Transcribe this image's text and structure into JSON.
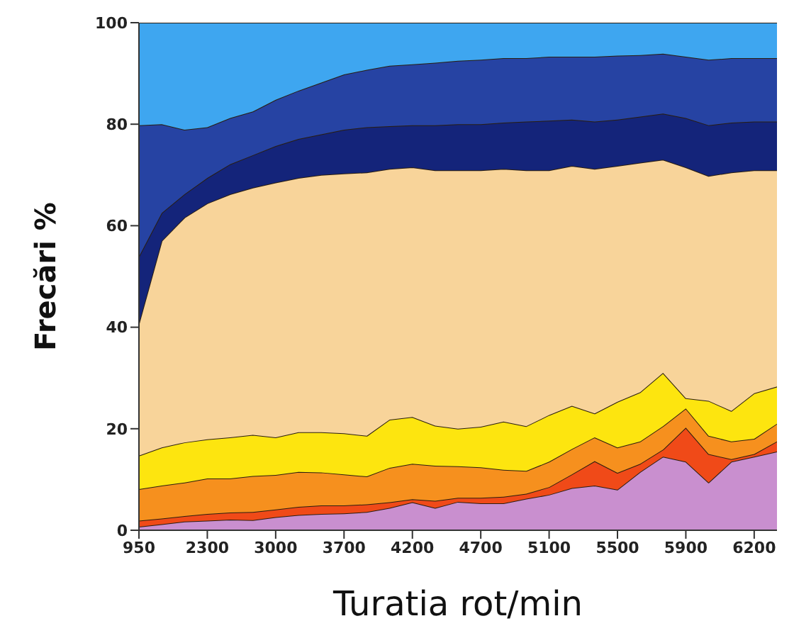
{
  "chart_data": {
    "type": "area",
    "stacked": true,
    "xlabel": "Turatia rot/min",
    "ylabel": "Frecări %",
    "categories": [
      "950",
      null,
      null,
      "2300",
      null,
      null,
      "3000",
      null,
      null,
      "3700",
      null,
      null,
      "4200",
      null,
      null,
      "4700",
      null,
      null,
      "5100",
      null,
      null,
      "5500",
      null,
      null,
      "5900",
      null,
      null,
      "6200",
      null
    ],
    "ylim": [
      0,
      100
    ],
    "yticks": [
      0,
      20,
      40,
      60,
      80,
      100
    ],
    "grid": false,
    "legend": false,
    "series": [
      {
        "color": "#c98fcf",
        "values": [
          0.7,
          1.2,
          1.7,
          1.9,
          2.1,
          2.0,
          2.6,
          3.0,
          3.2,
          3.3,
          3.6,
          4.4,
          5.5,
          4.4,
          5.6,
          5.3,
          5.3,
          6.2,
          7.0,
          8.3,
          8.8,
          8.0,
          11.5,
          14.5,
          13.5,
          9.4,
          13.5,
          14.5,
          15.5
        ]
      },
      {
        "color": "#f04a18",
        "values": [
          1.2,
          1.1,
          1.1,
          1.3,
          1.4,
          1.6,
          1.5,
          1.6,
          1.7,
          1.6,
          1.5,
          1.1,
          0.6,
          1.4,
          0.8,
          1.1,
          1.3,
          1.0,
          1.5,
          2.7,
          4.8,
          3.3,
          1.6,
          1.4,
          6.7,
          5.6,
          0.5,
          0.5,
          2.0
        ]
      },
      {
        "color": "#f6901e",
        "values": [
          6.2,
          6.5,
          6.6,
          7.0,
          6.7,
          7.1,
          6.8,
          6.9,
          6.5,
          6.1,
          5.5,
          6.8,
          7.0,
          6.9,
          6.2,
          6.0,
          5.3,
          4.5,
          5.0,
          5.0,
          4.7,
          5.0,
          4.4,
          4.6,
          3.8,
          3.6,
          3.5,
          3.0,
          3.5
        ]
      },
      {
        "color": "#fde50f",
        "values": [
          6.6,
          7.5,
          7.9,
          7.7,
          8.1,
          8.1,
          7.4,
          7.8,
          7.9,
          8.1,
          8.0,
          9.5,
          9.2,
          7.9,
          7.4,
          8.0,
          9.5,
          8.8,
          9.2,
          8.5,
          4.7,
          9.0,
          9.7,
          10.5,
          2.0,
          6.9,
          6.0,
          9.0,
          7.3
        ]
      },
      {
        "color": "#f8d49a",
        "values": [
          26.0,
          40.7,
          44.3,
          46.5,
          47.9,
          48.7,
          50.2,
          50.1,
          50.7,
          51.2,
          51.9,
          49.4,
          49.2,
          50.3,
          50.9,
          50.5,
          49.8,
          50.4,
          48.2,
          47.3,
          48.2,
          46.5,
          45.2,
          42.0,
          45.5,
          44.3,
          47.0,
          43.9,
          42.6
        ]
      },
      {
        "color": "#14247a",
        "values": [
          13.2,
          5.5,
          4.6,
          5.0,
          5.9,
          6.4,
          7.2,
          7.7,
          8.0,
          8.6,
          8.9,
          8.4,
          8.3,
          8.9,
          9.1,
          9.1,
          9.1,
          9.6,
          9.8,
          9.1,
          9.3,
          9.1,
          9.1,
          9.1,
          9.7,
          10.0,
          9.8,
          9.6,
          9.6
        ]
      },
      {
        "color": "#2643a3",
        "values": [
          25.9,
          17.5,
          12.7,
          10.0,
          9.1,
          8.6,
          9.1,
          9.5,
          10.2,
          10.9,
          11.3,
          11.9,
          12.0,
          12.3,
          12.5,
          12.7,
          12.7,
          12.5,
          12.6,
          12.4,
          12.8,
          12.6,
          12.1,
          11.8,
          12.1,
          12.9,
          12.7,
          12.5,
          12.5
        ]
      },
      {
        "color": "#3ea6f0",
        "values": [
          20.2,
          20.0,
          21.1,
          20.6,
          18.8,
          17.5,
          15.2,
          13.4,
          11.8,
          10.2,
          9.3,
          8.5,
          8.2,
          7.9,
          7.5,
          7.3,
          7.0,
          7.0,
          6.7,
          6.7,
          6.7,
          6.5,
          6.4,
          6.1,
          6.7,
          7.3,
          7.0,
          7.0,
          7.0
        ]
      }
    ]
  }
}
